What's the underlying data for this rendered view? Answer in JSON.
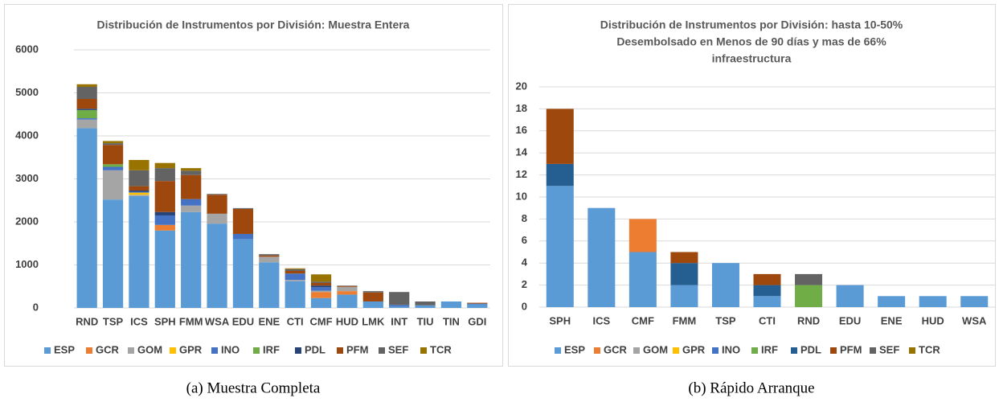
{
  "chart_data": [
    {
      "type": "stacked_bar",
      "title": [
        "Distribución de Instrumentos por División: Muestra Entera"
      ],
      "caption": "(a) Muestra Completa",
      "categories": [
        "RND",
        "TSP",
        "ICS",
        "SPH",
        "FMM",
        "WSA",
        "EDU",
        "ENE",
        "CTI",
        "CMF",
        "HUD",
        "LMK",
        "INT",
        "TIU",
        "TIN",
        "GDI"
      ],
      "ylim": [
        0,
        6000
      ],
      "yticks": [
        0,
        1000,
        2000,
        3000,
        4000,
        5000,
        6000
      ],
      "grid": true,
      "legend": "bottom",
      "series": [
        {
          "name": "ESP",
          "color": "#5b9bd5",
          "values": [
            4180,
            2520,
            2600,
            1800,
            2230,
            1960,
            1600,
            1060,
            620,
            230,
            310,
            150,
            30,
            60,
            150,
            80
          ]
        },
        {
          "name": "GCR",
          "color": "#ed7d31",
          "values": [
            0,
            0,
            0,
            130,
            0,
            0,
            0,
            0,
            0,
            140,
            80,
            0,
            0,
            0,
            0,
            0
          ]
        },
        {
          "name": "GOM",
          "color": "#a5a5a5",
          "values": [
            200,
            680,
            30,
            0,
            150,
            230,
            0,
            130,
            30,
            30,
            100,
            0,
            0,
            0,
            0,
            0
          ]
        },
        {
          "name": "GPR",
          "color": "#ffc000",
          "values": [
            0,
            0,
            50,
            0,
            0,
            0,
            0,
            0,
            0,
            0,
            0,
            0,
            0,
            0,
            0,
            0
          ]
        },
        {
          "name": "INO",
          "color": "#4472c4",
          "values": [
            30,
            80,
            20,
            220,
            150,
            0,
            120,
            0,
            150,
            80,
            0,
            0,
            40,
            0,
            0,
            20
          ]
        },
        {
          "name": "IRF",
          "color": "#70ad47",
          "values": [
            190,
            60,
            0,
            0,
            0,
            0,
            0,
            0,
            0,
            0,
            0,
            0,
            0,
            0,
            0,
            0
          ]
        },
        {
          "name": "PDL",
          "color": "#264478",
          "values": [
            30,
            0,
            30,
            80,
            0,
            0,
            0,
            0,
            0,
            40,
            0,
            0,
            0,
            0,
            0,
            0
          ]
        },
        {
          "name": "PFM",
          "color": "#9e480e",
          "values": [
            230,
            450,
            100,
            720,
            560,
            440,
            580,
            30,
            60,
            60,
            20,
            210,
            0,
            0,
            0,
            20
          ]
        },
        {
          "name": "SEF",
          "color": "#636363",
          "values": [
            280,
            40,
            370,
            300,
            100,
            20,
            20,
            30,
            40,
            30,
            10,
            30,
            300,
            90,
            0,
            0
          ]
        },
        {
          "name": "TCR",
          "color": "#997300",
          "values": [
            60,
            50,
            240,
            120,
            60,
            0,
            0,
            0,
            20,
            170,
            0,
            0,
            0,
            0,
            0,
            0
          ]
        }
      ]
    },
    {
      "type": "stacked_bar",
      "title": [
        "Distribución de Instrumentos por División:  hasta 10-50%",
        "Desembolsado en Menos de 90 días y mas de 66%",
        "infraestructura"
      ],
      "caption": "(b) Rápido Arranque",
      "categories": [
        "SPH",
        "ICS",
        "CMF",
        "FMM",
        "TSP",
        "CTI",
        "RND",
        "EDU",
        "ENE",
        "HUD",
        "WSA"
      ],
      "ylim": [
        0,
        20
      ],
      "yticks": [
        0,
        2,
        4,
        6,
        8,
        10,
        12,
        14,
        16,
        18,
        20
      ],
      "grid": true,
      "legend": "bottom",
      "series": [
        {
          "name": "ESP",
          "color": "#5b9bd5",
          "values": [
            11,
            9,
            5,
            2,
            4,
            1,
            0,
            2,
            1,
            1,
            1
          ]
        },
        {
          "name": "GCR",
          "color": "#ed7d31",
          "values": [
            0,
            0,
            3,
            0,
            0,
            0,
            0,
            0,
            0,
            0,
            0
          ]
        },
        {
          "name": "GOM",
          "color": "#a5a5a5",
          "values": [
            0,
            0,
            0,
            0,
            0,
            0,
            0,
            0,
            0,
            0,
            0
          ]
        },
        {
          "name": "GPR",
          "color": "#ffc000",
          "values": [
            0,
            0,
            0,
            0,
            0,
            0,
            0,
            0,
            0,
            0,
            0
          ]
        },
        {
          "name": "INO",
          "color": "#4472c4",
          "values": [
            0,
            0,
            0,
            0,
            0,
            0,
            0,
            0,
            0,
            0,
            0
          ]
        },
        {
          "name": "IRF",
          "color": "#70ad47",
          "values": [
            0,
            0,
            0,
            0,
            0,
            0,
            2,
            0,
            0,
            0,
            0
          ]
        },
        {
          "name": "PDL",
          "color": "#255e91",
          "values": [
            2,
            0,
            0,
            2,
            0,
            1,
            0,
            0,
            0,
            0,
            0
          ]
        },
        {
          "name": "PFM",
          "color": "#9e480e",
          "values": [
            5,
            0,
            0,
            1,
            0,
            1,
            0,
            0,
            0,
            0,
            0
          ]
        },
        {
          "name": "SEF",
          "color": "#636363",
          "values": [
            0,
            0,
            0,
            0,
            0,
            0,
            1,
            0,
            0,
            0,
            0
          ]
        },
        {
          "name": "TCR",
          "color": "#997300",
          "values": [
            0,
            0,
            0,
            0,
            0,
            0,
            0,
            0,
            0,
            0,
            0
          ]
        }
      ]
    }
  ]
}
